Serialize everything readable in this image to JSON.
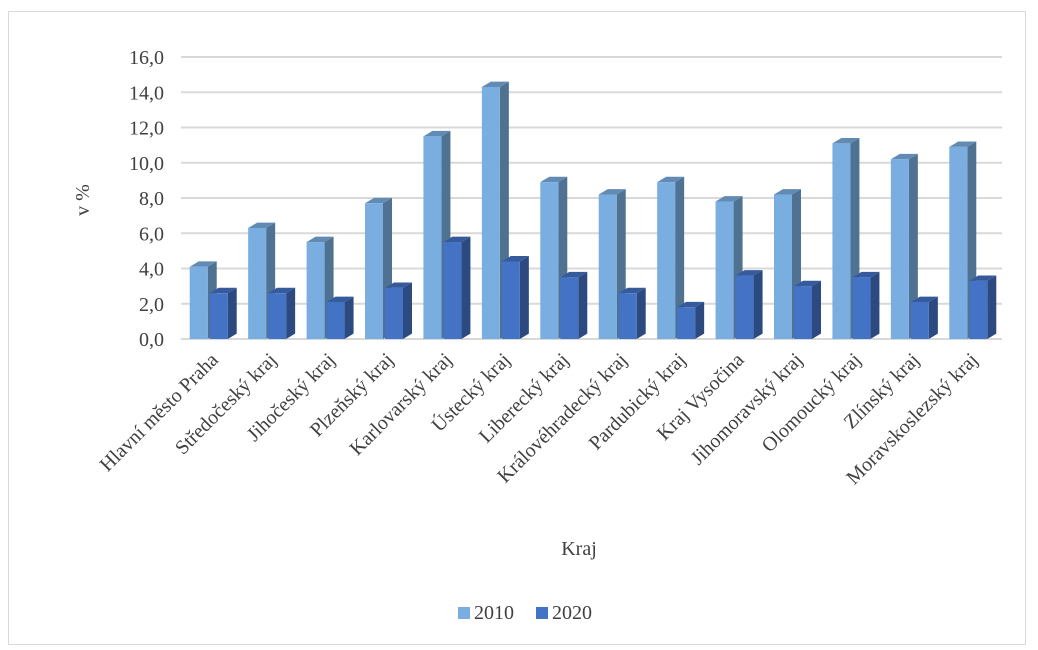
{
  "chart_data": {
    "type": "bar",
    "title": "",
    "xlabel": "Kraj",
    "ylabel": "v %",
    "ylim": [
      0,
      16
    ],
    "yticks": [
      "0,0",
      "2,0",
      "4,0",
      "6,0",
      "8,0",
      "10,0",
      "12,0",
      "14,0",
      "16,0"
    ],
    "grid": true,
    "legend_position": "bottom",
    "categories": [
      "Hlavní město Praha",
      "Středočeský kraj",
      "Jihočeský kraj",
      "Plzeňský kraj",
      "Karlovarský kraj",
      "Ústecký kraj",
      "Liberecký kraj",
      "Královéhradecký kraj",
      "Pardubický kraj",
      "Kraj Vysočina",
      "Jihomoravský kraj",
      "Olomoucký kraj",
      "Zlínský kraj",
      "Moravskoslezský kraj"
    ],
    "series": [
      {
        "name": "2010",
        "color": "#7aaee0",
        "values": [
          4.1,
          6.3,
          5.5,
          7.7,
          11.5,
          14.3,
          8.9,
          8.2,
          8.9,
          7.8,
          8.2,
          11.1,
          10.2,
          10.9
        ]
      },
      {
        "name": "2020",
        "color": "#4472c4",
        "values": [
          2.6,
          2.6,
          2.1,
          2.9,
          5.5,
          4.4,
          3.5,
          2.6,
          1.8,
          3.6,
          3.0,
          3.5,
          2.1,
          3.3
        ]
      }
    ]
  }
}
